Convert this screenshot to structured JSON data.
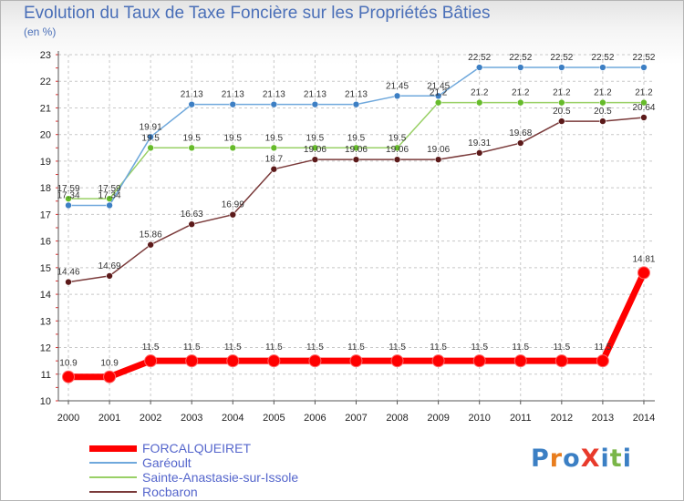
{
  "title": "Evolution du Taux de Taxe Foncière sur les Propriétés Bâties",
  "subtitle": "(en %)",
  "logo": {
    "text": "ProXiti",
    "letters": [
      "P",
      "r",
      "o",
      "X",
      "i",
      "t",
      "i"
    ],
    "colors": [
      "#3b7fc4",
      "#e87d1e",
      "#3b7fc4",
      "#e83a2b",
      "#3b7fc4",
      "#7ab648",
      "#3b7fc4"
    ]
  },
  "chart_data": {
    "type": "line",
    "title": "Evolution du Taux de Taxe Foncière sur les Propriétés Bâties",
    "ylabel": "(en %)",
    "xlabel": "",
    "ylim": [
      10,
      23
    ],
    "yticks": [
      "10",
      "11",
      "12",
      "13",
      "14",
      "15",
      "16",
      "17",
      "18",
      "19",
      "20",
      "21",
      "22",
      "23"
    ],
    "categories": [
      "2000",
      "2001",
      "2002",
      "2003",
      "2004",
      "2005",
      "2006",
      "2007",
      "2008",
      "2009",
      "2010",
      "2011",
      "2012",
      "2013",
      "2014"
    ],
    "grid": true,
    "legend_position": "bottom-left",
    "series": [
      {
        "name": "FORCALQUEIRET",
        "color": "#ff0000",
        "marker": "#ff0000",
        "values": [
          10.9,
          10.9,
          11.5,
          11.5,
          11.5,
          11.5,
          11.5,
          11.5,
          11.5,
          11.5,
          11.5,
          11.5,
          11.5,
          11.5,
          14.81
        ],
        "labels": [
          "10.9",
          "10.9",
          "11.5",
          "11.5",
          "11.5",
          "11.5",
          "11.5",
          "11.5",
          "11.5",
          "11.5",
          "11.5",
          "11.5",
          "11.5",
          "11.5",
          "14.81"
        ]
      },
      {
        "name": "Garéoult",
        "color": "#6fa8dc",
        "marker": "#3d7fc4",
        "values": [
          17.34,
          17.34,
          19.91,
          21.13,
          21.13,
          21.13,
          21.13,
          21.13,
          21.45,
          21.45,
          22.52,
          22.52,
          22.52,
          22.52,
          22.52
        ],
        "labels": [
          "17.34",
          "17.34",
          "19.91",
          "21.13",
          "21.13",
          "21.13",
          "21.13",
          "21.13",
          "21.45",
          "21.45",
          "22.52",
          "22.52",
          "22.52",
          "22.52",
          "22.52"
        ]
      },
      {
        "name": "Sainte-Anastasie-sur-Issole",
        "color": "#99d066",
        "marker": "#66bb2a",
        "values": [
          17.59,
          17.59,
          19.5,
          19.5,
          19.5,
          19.5,
          19.5,
          19.5,
          19.5,
          21.2,
          21.2,
          21.2,
          21.2,
          21.2,
          21.2
        ],
        "labels": [
          "17.59",
          "17.59",
          "19.5",
          "19.5",
          "19.5",
          "19.5",
          "19.5",
          "19.5",
          "19.5",
          "21.2",
          "21.2",
          "21.2",
          "21.2",
          "21.2",
          "21.2"
        ]
      },
      {
        "name": "Rocbaron",
        "color": "#7a3a3a",
        "marker": "#5c1a1a",
        "values": [
          14.46,
          14.69,
          15.86,
          16.63,
          16.99,
          18.7,
          19.06,
          19.06,
          19.06,
          19.06,
          19.31,
          19.68,
          20.5,
          20.5,
          20.64
        ],
        "labels": [
          "14.46",
          "14.69",
          "15.86",
          "16.63",
          "16.99",
          "18.7",
          "19.06",
          "19.06",
          "19.06",
          "19.06",
          "19.31",
          "19.68",
          "20.5",
          "20.5",
          "20.64"
        ]
      }
    ]
  }
}
